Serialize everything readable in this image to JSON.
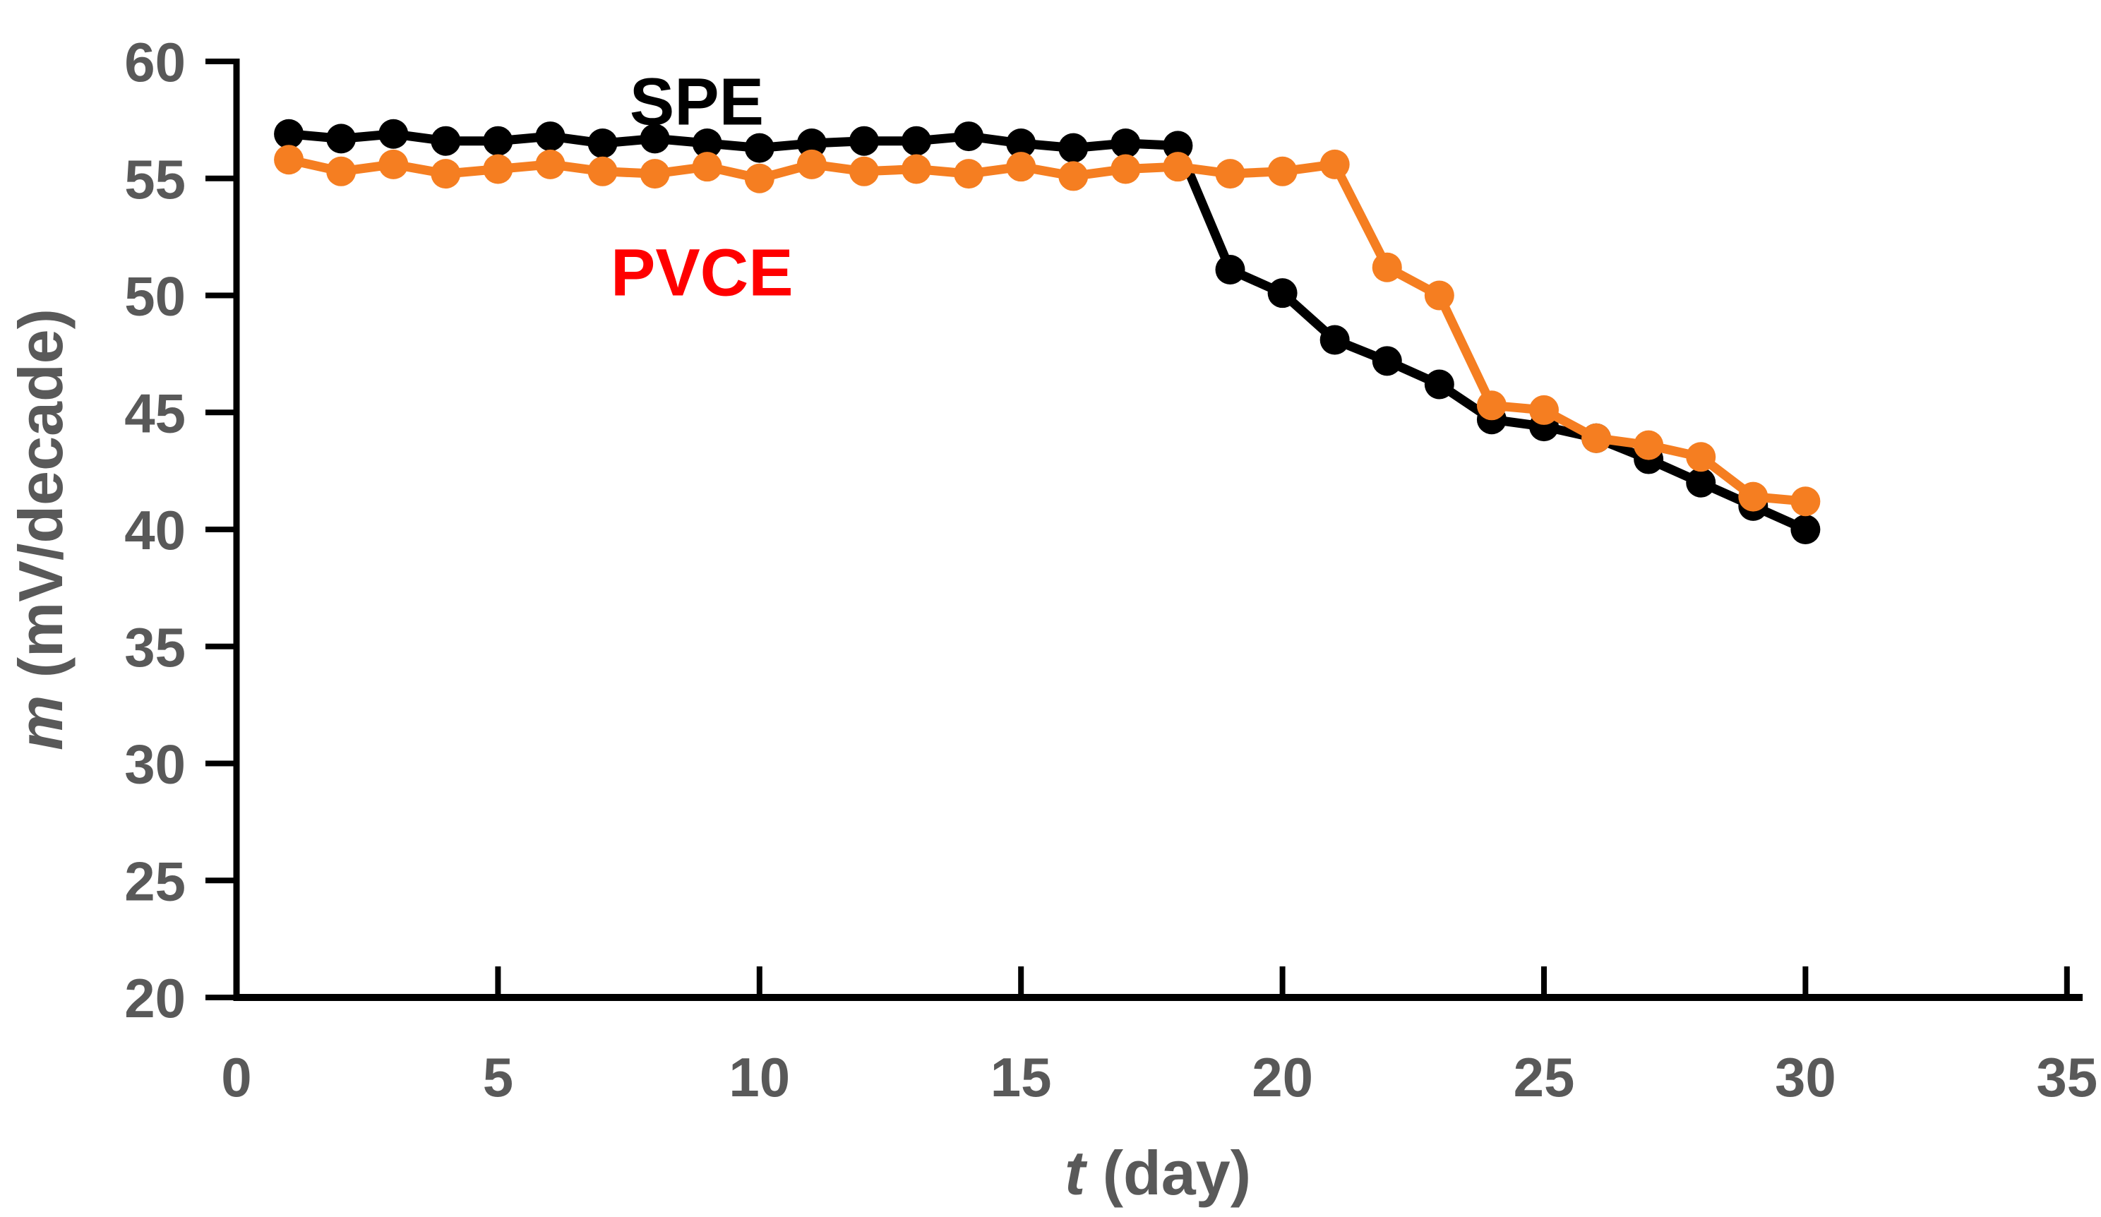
{
  "chart_data": {
    "type": "line",
    "title": "",
    "xlabel_var": "t",
    "xlabel_rest": " (day)",
    "ylabel_var": "m",
    "ylabel_rest": " (mV/decade)",
    "xlim": [
      0,
      35.3
    ],
    "ylim": [
      20,
      60
    ],
    "xticks": [
      0,
      5,
      10,
      15,
      20,
      25,
      30,
      35
    ],
    "yticks": [
      20,
      25,
      30,
      35,
      40,
      45,
      50,
      55,
      60
    ],
    "grid": false,
    "legend_position": "inline-annotations",
    "axis_color": "#000000",
    "tick_label_color": "#595959",
    "marker": "circle",
    "marker_size": 42,
    "line_width": 13,
    "x": [
      1,
      2,
      3,
      4,
      5,
      6,
      7,
      8,
      9,
      10,
      11,
      12,
      13,
      14,
      15,
      16,
      17,
      18,
      19,
      20,
      21,
      22,
      23,
      24,
      25,
      26,
      27,
      28,
      29,
      30
    ],
    "series": [
      {
        "name": "SPE",
        "color": "#000000",
        "values": [
          56.9,
          56.7,
          56.9,
          56.6,
          56.6,
          56.8,
          56.5,
          56.7,
          56.5,
          56.3,
          56.5,
          56.6,
          56.6,
          56.8,
          56.5,
          56.3,
          56.5,
          56.4,
          51.1,
          50.1,
          48.1,
          47.2,
          46.2,
          44.7,
          44.4,
          43.9,
          43.0,
          42.0,
          41.0,
          40.0
        ]
      },
      {
        "name": "PVCE",
        "color": "#F57E21",
        "values": [
          55.8,
          55.3,
          55.6,
          55.2,
          55.4,
          55.6,
          55.3,
          55.2,
          55.5,
          55.0,
          55.6,
          55.3,
          55.4,
          55.2,
          55.5,
          55.1,
          55.4,
          55.5,
          55.2,
          55.3,
          55.6,
          51.2,
          50.0,
          45.3,
          45.1,
          43.9,
          43.6,
          43.1,
          41.4,
          41.2
        ]
      }
    ],
    "annotations": [
      {
        "text": "SPE",
        "x": 8.8,
        "y": 58.3,
        "color": "#000000"
      },
      {
        "text": "PVCE",
        "x": 8.9,
        "y": 51.0,
        "color": "#FF0000"
      }
    ]
  }
}
